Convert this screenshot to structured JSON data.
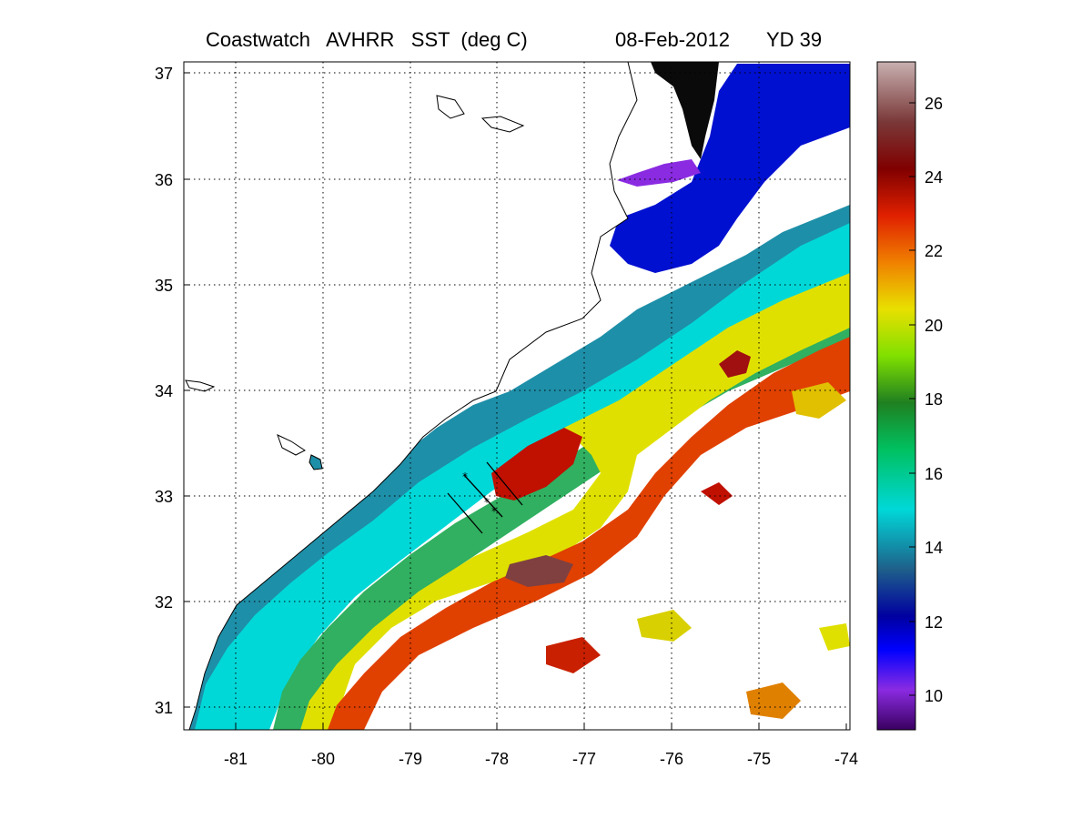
{
  "title": {
    "main": "Coastwatch   AVHRR   SST  (deg C)",
    "date": "08-Feb-2012",
    "yearday": "YD 39"
  },
  "map": {
    "lon_ticks": [
      "-81",
      "-80",
      "-79",
      "-78",
      "-77",
      "-76",
      "-75",
      "-74"
    ],
    "lat_ticks": [
      "37",
      "36",
      "35",
      "34",
      "33",
      "32",
      "31"
    ],
    "lon_range": [
      -81.6,
      -74.0
    ],
    "lat_range": [
      30.8,
      37.1
    ],
    "grid": "dotted"
  },
  "colorbar": {
    "ticks": [
      "26",
      "24",
      "22",
      "20",
      "18",
      "16",
      "14",
      "12",
      "10"
    ],
    "range": [
      9,
      27.1
    ],
    "colors": [
      "#3a0060",
      "#8a2be2",
      "#0000ff",
      "#0000a0",
      "#1e8fa8",
      "#00e0e0",
      "#00c000",
      "#90e000",
      "#f0e000",
      "#f07000",
      "#e00000",
      "#700000",
      "#804040",
      "#c8a8a8"
    ]
  },
  "colors": {
    "land": "#ffffff",
    "coast": "#000000",
    "frame": "#000000"
  }
}
